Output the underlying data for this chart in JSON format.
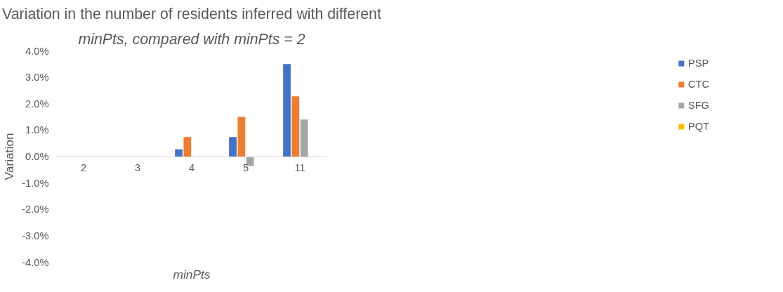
{
  "chart_data": {
    "type": "bar",
    "title": "Variation in the number of residents inferred with different",
    "subtitle": "minPts, compared with minPts = 2",
    "xlabel": "minPts",
    "ylabel": "Variation",
    "categories": [
      "2",
      "3",
      "4",
      "5",
      "11"
    ],
    "series": [
      {
        "name": "PSP",
        "color": "#4472c4",
        "values": [
          0,
          0,
          0.27,
          0.74,
          3.5
        ]
      },
      {
        "name": "CTC",
        "color": "#ed7d31",
        "values": [
          0,
          0,
          0.74,
          1.5,
          2.28
        ]
      },
      {
        "name": "SFG",
        "color": "#a5a5a5",
        "values": [
          0,
          0,
          0,
          -0.35,
          1.4
        ]
      },
      {
        "name": "PQT",
        "color": "#ffc000",
        "values": [
          0,
          0,
          0,
          0,
          0
        ]
      }
    ],
    "ylim": [
      -4,
      4
    ],
    "yticks": [
      {
        "value": -4,
        "label": "-4.0%"
      },
      {
        "value": -3,
        "label": "-3.0%"
      },
      {
        "value": -2,
        "label": "-2.0%"
      },
      {
        "value": -1,
        "label": "-1.0%"
      },
      {
        "value": 0,
        "label": "0.0%"
      },
      {
        "value": 1,
        "label": "1.0%"
      },
      {
        "value": 2,
        "label": "2.0%"
      },
      {
        "value": 3,
        "label": "3.0%"
      },
      {
        "value": 4,
        "label": "4.0%"
      }
    ],
    "grid": false,
    "legend": "right"
  }
}
